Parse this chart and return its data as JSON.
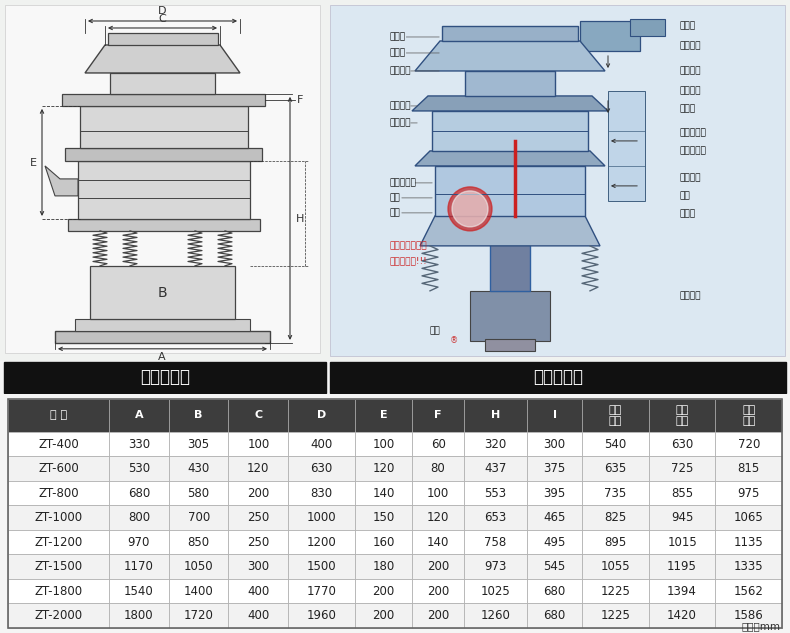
{
  "left_label": "外形尺寸图",
  "right_label": "一般结构图",
  "unit_note": "单位：mm",
  "header": [
    "型 号",
    "A",
    "B",
    "C",
    "D",
    "E",
    "F",
    "H",
    "I",
    "一层\n高度",
    "二层\n高度",
    "三层\n高度"
  ],
  "rows": [
    [
      "ZT-400",
      "330",
      "305",
      "100",
      "400",
      "100",
      "60",
      "320",
      "300",
      "540",
      "630",
      "720"
    ],
    [
      "ZT-600",
      "530",
      "430",
      "120",
      "630",
      "120",
      "80",
      "437",
      "375",
      "635",
      "725",
      "815"
    ],
    [
      "ZT-800",
      "680",
      "580",
      "200",
      "830",
      "140",
      "100",
      "553",
      "395",
      "735",
      "855",
      "975"
    ],
    [
      "ZT-1000",
      "800",
      "700",
      "250",
      "1000",
      "150",
      "120",
      "653",
      "465",
      "825",
      "945",
      "1065"
    ],
    [
      "ZT-1200",
      "970",
      "850",
      "250",
      "1200",
      "160",
      "140",
      "758",
      "495",
      "895",
      "1015",
      "1135"
    ],
    [
      "ZT-1500",
      "1170",
      "1050",
      "300",
      "1500",
      "180",
      "200",
      "973",
      "545",
      "1055",
      "1195",
      "1335"
    ],
    [
      "ZT-1800",
      "1540",
      "1400",
      "400",
      "1770",
      "200",
      "200",
      "1025",
      "680",
      "1225",
      "1394",
      "1562"
    ],
    [
      "ZT-2000",
      "1800",
      "1720",
      "400",
      "1960",
      "200",
      "200",
      "1260",
      "680",
      "1225",
      "1420",
      "1586"
    ]
  ],
  "header_bg": "#3d3d3d",
  "header_fg": "#ffffff",
  "row_bg_white": "#ffffff",
  "row_bg_gray": "#f2f2f2",
  "border_color": "#aaaaaa",
  "label_bar_bg": "#111111",
  "label_bar_fg": "#ffffff",
  "diagram_bg": "#f0f2f0",
  "left_diagram_bg": "#f8f8f8",
  "right_diagram_bg": "#d8e8f0",
  "line_color": "#444444",
  "dim_color": "#333333"
}
